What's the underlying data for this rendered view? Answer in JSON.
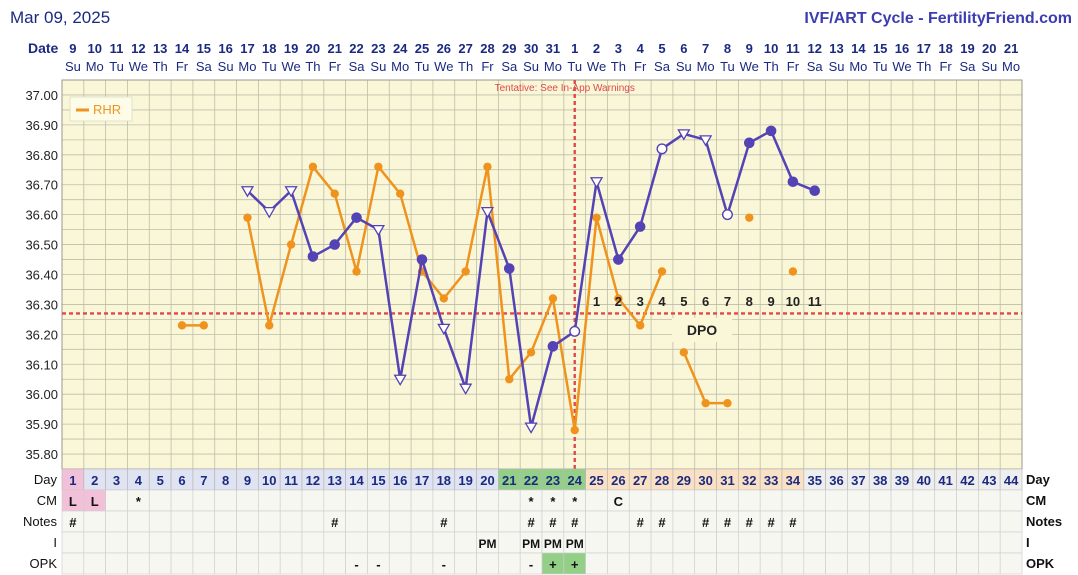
{
  "header": {
    "date_text": "Mar 09, 2025",
    "title": "IVF/ART Cycle - FertilityFriend.com"
  },
  "labels": {
    "date_row": "Date",
    "day_row": "Day",
    "cm_row": "CM",
    "notes_row": "Notes",
    "i_row": "I",
    "opk_row": "OPK",
    "tentative_note": "Tentative: See In-App Warnings",
    "dpo_label": "DPO",
    "coverline_value": 36.27
  },
  "colors": {
    "background": "#faf7d9",
    "grid": "#bdbda8",
    "bbt_line": "#5443b4",
    "rhr_line": "#f0931e",
    "red_dashed": "#dd4a4a",
    "header_text": "#1b2a80",
    "title_text": "#3b3cb0",
    "green_cell": "#93cf86",
    "pink_cell": "#f2c0d8",
    "orange_cell": "#fbe1c4",
    "blue_cell": "#dfe3f2",
    "gray_cell": "#eeeeee"
  },
  "chart_data": {
    "type": "line",
    "x": [
      1,
      2,
      3,
      4,
      5,
      6,
      7,
      8,
      9,
      10,
      11,
      12,
      13,
      14,
      15,
      16,
      17,
      18,
      19,
      20,
      21,
      22,
      23,
      24,
      25,
      26,
      27,
      28,
      29,
      30,
      31,
      32,
      33,
      34,
      35,
      36,
      37,
      38,
      39,
      40,
      41,
      42,
      43,
      44
    ],
    "dates": [
      "9",
      "10",
      "11",
      "12",
      "13",
      "14",
      "15",
      "16",
      "17",
      "18",
      "19",
      "20",
      "21",
      "22",
      "23",
      "24",
      "25",
      "26",
      "27",
      "28",
      "29",
      "30",
      "31",
      "1",
      "2",
      "3",
      "4",
      "5",
      "6",
      "7",
      "8",
      "9",
      "10",
      "11",
      "12",
      "13",
      "14",
      "15",
      "16",
      "17",
      "18",
      "19",
      "20",
      "21"
    ],
    "weekdays": [
      "Su",
      "Mo",
      "Tu",
      "We",
      "Th",
      "Fr",
      "Sa",
      "Su",
      "Mo",
      "Tu",
      "We",
      "Th",
      "Fr",
      "Sa",
      "Su",
      "Mo",
      "Tu",
      "We",
      "Th",
      "Fr",
      "Sa",
      "Su",
      "Mo",
      "Tu",
      "We",
      "Th",
      "Fr",
      "Sa",
      "Su",
      "Mo",
      "Tu",
      "We",
      "Th",
      "Fr",
      "Sa",
      "Su",
      "Mo",
      "Tu",
      "We",
      "Th",
      "Fr",
      "Sa",
      "Su",
      "Mo"
    ],
    "ylim": [
      35.75,
      37.05
    ],
    "yticks": [
      "37.00",
      "36.90",
      "36.80",
      "36.70",
      "36.60",
      "36.50",
      "36.40",
      "36.30",
      "36.20",
      "36.10",
      "36.00",
      "35.90",
      "35.80"
    ],
    "coverline": 36.27,
    "ovulation_day": 24,
    "legend_position": "top-left",
    "series": [
      {
        "name": "",
        "values": [
          null,
          null,
          null,
          null,
          null,
          null,
          null,
          null,
          36.68,
          36.61,
          36.68,
          36.46,
          36.5,
          36.59,
          36.55,
          36.05,
          36.45,
          36.22,
          36.02,
          36.61,
          36.42,
          35.89,
          36.16,
          36.21,
          36.71,
          36.45,
          36.56,
          36.82,
          36.87,
          36.85,
          36.6,
          36.84,
          36.88,
          36.71,
          36.68,
          null,
          null,
          null,
          null,
          null,
          null,
          null,
          null,
          null
        ],
        "markers": [
          null,
          null,
          null,
          null,
          null,
          null,
          null,
          null,
          "tri",
          "tri",
          "tri",
          "dot",
          "dot",
          "dot",
          "tri",
          "tri",
          "dot",
          "tri",
          "tri",
          "tri",
          "dot",
          "tri",
          "dot",
          "ring",
          "tri",
          "dot",
          "dot",
          "ring",
          "tri",
          "tri",
          "ring",
          "dot",
          "dot",
          "dot",
          "dot",
          null,
          null,
          null,
          null,
          null,
          null,
          null,
          null,
          null
        ]
      },
      {
        "name": "RHR",
        "values": [
          null,
          null,
          null,
          null,
          null,
          36.23,
          36.23,
          null,
          36.59,
          36.23,
          36.5,
          36.76,
          36.67,
          36.41,
          36.76,
          36.67,
          36.41,
          36.32,
          36.41,
          36.76,
          36.05,
          36.14,
          36.32,
          35.88,
          36.59,
          36.32,
          36.23,
          36.41,
          36.14,
          35.97,
          35.97,
          36.59,
          null,
          36.41,
          null,
          null,
          null,
          null,
          null,
          null,
          null,
          null,
          null,
          null
        ],
        "segments_break_after": [
          7,
          28,
          31
        ]
      }
    ],
    "dpo_numbers": [
      "1",
      "2",
      "3",
      "4",
      "5",
      "6",
      "7",
      "8",
      "9",
      "10",
      "11"
    ],
    "day_cell_colors": [
      "pink",
      "blue",
      "blue",
      "blue",
      "blue",
      "blue",
      "blue",
      "blue",
      "blue",
      "blue",
      "blue",
      "blue",
      "blue",
      "blue",
      "blue",
      "blue",
      "blue",
      "blue",
      "blue",
      "blue",
      "green",
      "green",
      "green",
      "green",
      "orange",
      "orange",
      "orange",
      "orange",
      "orange",
      "orange",
      "orange",
      "orange",
      "orange",
      "orange",
      "gray",
      "gray",
      "gray",
      "gray",
      "gray",
      "gray",
      "gray",
      "gray",
      "gray",
      "gray"
    ],
    "cm_row": [
      "L",
      "L",
      "",
      "*",
      "",
      "",
      "",
      "",
      "",
      "",
      "",
      "",
      "",
      "",
      "",
      "",
      "",
      "",
      "",
      "",
      "",
      "*",
      "*",
      "*",
      "",
      "C",
      "",
      "",
      "",
      "",
      "",
      "",
      "",
      "",
      "",
      "",
      "",
      "",
      "",
      "",
      "",
      "",
      "",
      ""
    ],
    "cm_pink_days": [
      1,
      2
    ],
    "notes_row": [
      "#",
      "",
      "",
      "",
      "",
      "",
      "",
      "",
      "",
      "",
      "",
      "",
      "#",
      "",
      "",
      "",
      "",
      "#",
      "",
      "",
      "",
      "#",
      "#",
      "#",
      "",
      "",
      "#",
      "#",
      "",
      "#",
      "#",
      "#",
      "#",
      "#",
      "",
      "",
      "",
      "",
      "",
      "",
      "",
      "",
      "",
      ""
    ],
    "i_row": [
      "",
      "",
      "",
      "",
      "",
      "",
      "",
      "",
      "",
      "",
      "",
      "",
      "",
      "",
      "",
      "",
      "",
      "",
      "",
      "PM",
      "",
      "PM",
      "PM",
      "PM",
      "",
      "",
      "",
      "",
      "",
      "",
      "",
      "",
      "",
      "",
      "",
      "",
      "",
      "",
      "",
      "",
      "",
      "",
      "",
      ""
    ],
    "opk_row": [
      "",
      "",
      "",
      "",
      "",
      "",
      "",
      "",
      "",
      "",
      "",
      "",
      "",
      "-",
      "-",
      "",
      "",
      "-",
      "",
      "",
      "",
      "-",
      "+",
      "+",
      "",
      "",
      "",
      "",
      "",
      "",
      "",
      "",
      "",
      "",
      "",
      "",
      "",
      "",
      "",
      "",
      "",
      "",
      "",
      ""
    ],
    "opk_green_days": [
      23,
      24
    ]
  }
}
